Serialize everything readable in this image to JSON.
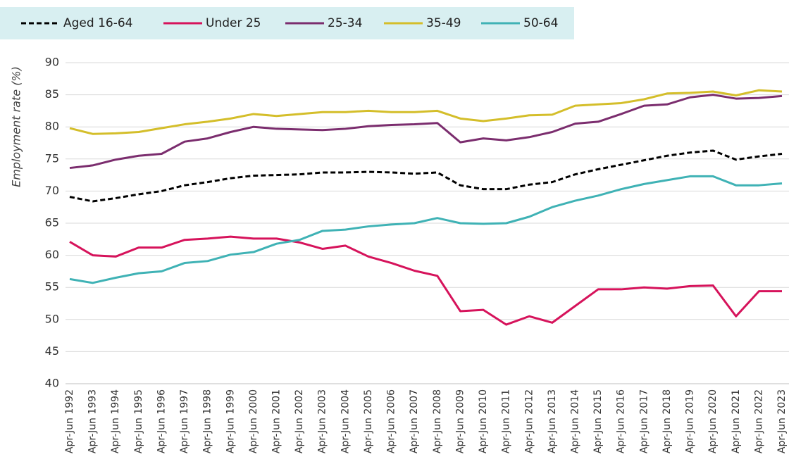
{
  "chart_data": {
    "type": "line",
    "y_label": "Employment rate (%)",
    "categories": [
      "Apr-Jun 1992",
      "Apr-Jun 1993",
      "Apr-Jun 1994",
      "Apr-Jun 1995",
      "Apr-Jun 1996",
      "Apr-Jun 1997",
      "Apr-Jun 1998",
      "Apr-Jun 1999",
      "Apr-Jun 2000",
      "Apr-Jun 2001",
      "Apr-Jun 2002",
      "Apr-Jun 2003",
      "Apr-Jun 2004",
      "Apr-Jun 2005",
      "Apr-Jun 2006",
      "Apr-Jun 2007",
      "Apr-Jun 2008",
      "Apr-Jun 2009",
      "Apr-Jun 2010",
      "Apr-Jun 2011",
      "Apr-Jun 2012",
      "Apr-Jun 2013",
      "Apr-Jun 2014",
      "Apr-Jun 2015",
      "Apr-Jun 2016",
      "Apr-Jun 2017",
      "Apr-Jun 2018",
      "Apr-Jun 2019",
      "Apr-Jun 2020",
      "Apr-Jun 2021",
      "Apr-Jun 2022",
      "Apr-Jun 2023"
    ],
    "series": [
      {
        "name": "Aged 16-64",
        "color": "#000000",
        "dashed": true,
        "values": [
          69.1,
          68.4,
          68.9,
          69.5,
          70.0,
          70.9,
          71.4,
          72.0,
          72.4,
          72.5,
          72.6,
          72.9,
          72.9,
          73.0,
          72.9,
          72.7,
          72.9,
          70.9,
          70.3,
          70.3,
          71.0,
          71.4,
          72.6,
          73.4,
          74.1,
          74.8,
          75.5,
          76.0,
          76.3,
          74.9,
          75.4,
          75.8
        ]
      },
      {
        "name": "Under 25",
        "color": "#d6135b",
        "dashed": false,
        "values": [
          62.1,
          60.0,
          59.8,
          61.2,
          61.2,
          62.4,
          62.6,
          62.9,
          62.6,
          62.6,
          62.0,
          61.0,
          61.5,
          59.8,
          58.8,
          57.6,
          56.8,
          51.3,
          51.5,
          49.2,
          50.5,
          49.5,
          52.1,
          54.7,
          54.7,
          55.0,
          54.8,
          55.2,
          55.3,
          50.5,
          54.4,
          54.4
        ]
      },
      {
        "name": "25-34",
        "color": "#7b2d6e",
        "dashed": false,
        "values": [
          73.6,
          74.0,
          74.9,
          75.5,
          75.8,
          77.7,
          78.2,
          79.2,
          80.0,
          79.7,
          79.6,
          79.5,
          79.7,
          80.1,
          80.3,
          80.4,
          80.6,
          77.6,
          78.2,
          77.9,
          78.4,
          79.2,
          80.5,
          80.8,
          82.0,
          83.3,
          83.5,
          84.6,
          85.0,
          84.4,
          84.5,
          84.8
        ]
      },
      {
        "name": "35-49",
        "color": "#d4be2a",
        "dashed": false,
        "values": [
          79.8,
          78.9,
          79.0,
          79.2,
          79.8,
          80.4,
          80.8,
          81.3,
          82.0,
          81.7,
          82.0,
          82.3,
          82.3,
          82.5,
          82.3,
          82.3,
          82.5,
          81.3,
          80.9,
          81.3,
          81.8,
          81.9,
          83.3,
          83.5,
          83.7,
          84.3,
          85.2,
          85.3,
          85.5,
          84.9,
          85.7,
          85.5
        ]
      },
      {
        "name": "50-64",
        "color": "#3fb2b5",
        "dashed": false,
        "values": [
          56.3,
          55.7,
          56.5,
          57.2,
          57.5,
          58.8,
          59.1,
          60.1,
          60.5,
          61.8,
          62.4,
          63.8,
          64.0,
          64.5,
          64.8,
          65.0,
          65.8,
          65.0,
          64.9,
          65.0,
          66.0,
          67.5,
          68.5,
          69.3,
          70.3,
          71.1,
          71.7,
          72.3,
          72.3,
          70.9,
          70.9,
          71.2
        ]
      }
    ],
    "ylim": [
      40,
      90
    ],
    "yticks": [
      40,
      45,
      50,
      55,
      60,
      65,
      70,
      75,
      80,
      85,
      90
    ],
    "grid": true,
    "legend": "top"
  }
}
